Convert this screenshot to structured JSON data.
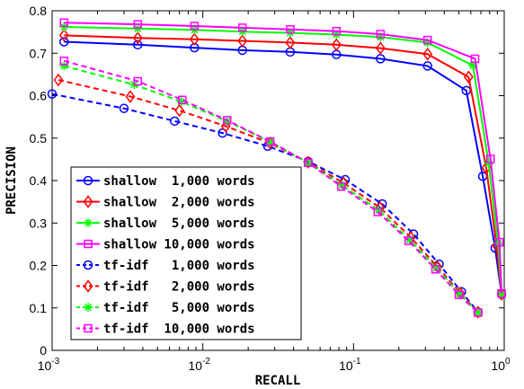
{
  "chart_data": {
    "type": "line",
    "xlabel": "RECALL",
    "ylabel": "PRECISION",
    "xscale": "log",
    "xlim": [
      0.001,
      1
    ],
    "ylim": [
      0,
      0.8
    ],
    "x_ticks": [
      {
        "value": 0.001,
        "base": "10",
        "exp": "-3"
      },
      {
        "value": 0.01,
        "base": "10",
        "exp": "-2"
      },
      {
        "value": 0.1,
        "base": "10",
        "exp": "-1"
      },
      {
        "value": 1,
        "base": "10",
        "exp": "0"
      }
    ],
    "y_ticks": [
      "0",
      "0.1",
      "0.2",
      "0.3",
      "0.4",
      "0.5",
      "0.6",
      "0.7",
      "0.8"
    ],
    "grid": false,
    "legend_position": "bottom-left",
    "series": [
      {
        "name": "shallow  1,000 words",
        "color": "#0000ff",
        "line": "solid",
        "marker": "circle",
        "x": [
          0.0012,
          0.0037,
          0.0088,
          0.0183,
          0.038,
          0.077,
          0.151,
          0.31,
          0.56,
          0.72,
          0.87,
          0.96
        ],
        "y": [
          0.727,
          0.72,
          0.713,
          0.707,
          0.703,
          0.697,
          0.687,
          0.67,
          0.612,
          0.41,
          0.241,
          0.132
        ]
      },
      {
        "name": "shallow  2,000 words",
        "color": "#ff0000",
        "line": "solid",
        "marker": "diamond",
        "x": [
          0.0012,
          0.0037,
          0.0088,
          0.0183,
          0.038,
          0.077,
          0.151,
          0.31,
          0.58,
          0.76,
          0.89,
          0.96
        ],
        "y": [
          0.742,
          0.736,
          0.733,
          0.729,
          0.725,
          0.72,
          0.712,
          0.698,
          0.644,
          0.43,
          0.247,
          0.132
        ]
      },
      {
        "name": "shallow  5,000 words",
        "color": "#00ff00",
        "line": "solid",
        "marker": "star",
        "x": [
          0.0012,
          0.0037,
          0.0088,
          0.0183,
          0.038,
          0.077,
          0.151,
          0.31,
          0.62,
          0.79,
          0.91,
          0.96
        ],
        "y": [
          0.762,
          0.758,
          0.755,
          0.751,
          0.748,
          0.744,
          0.738,
          0.725,
          0.671,
          0.44,
          0.252,
          0.132
        ]
      },
      {
        "name": "shallow 10,000 words",
        "color": "#ff00ff",
        "line": "solid",
        "marker": "square",
        "x": [
          0.0012,
          0.0037,
          0.0088,
          0.0183,
          0.038,
          0.077,
          0.151,
          0.31,
          0.64,
          0.81,
          0.93,
          0.96
        ],
        "y": [
          0.772,
          0.768,
          0.764,
          0.76,
          0.756,
          0.752,
          0.745,
          0.731,
          0.687,
          0.451,
          0.255,
          0.134
        ]
      },
      {
        "name": "tf-idf   1,000 words",
        "color": "#0000ff",
        "line": "dashed",
        "marker": "circle",
        "x": [
          0.001,
          0.003,
          0.0065,
          0.0135,
          0.027,
          0.05,
          0.088,
          0.155,
          0.25,
          0.37,
          0.52,
          0.67
        ],
        "y": [
          0.604,
          0.57,
          0.54,
          0.512,
          0.481,
          0.445,
          0.402,
          0.345,
          0.274,
          0.203,
          0.138,
          0.09
        ]
      },
      {
        "name": "tf-idf   2,000 words",
        "color": "#ff0000",
        "line": "dashed",
        "marker": "diamond",
        "x": [
          0.0011,
          0.0033,
          0.007,
          0.0142,
          0.028,
          0.05,
          0.086,
          0.15,
          0.24,
          0.36,
          0.51,
          0.67
        ],
        "y": [
          0.637,
          0.598,
          0.565,
          0.528,
          0.488,
          0.443,
          0.394,
          0.336,
          0.266,
          0.197,
          0.135,
          0.09
        ]
      },
      {
        "name": "tf-idf   5,000 words",
        "color": "#00ff00",
        "line": "dashed",
        "marker": "star",
        "x": [
          0.0012,
          0.0035,
          0.0072,
          0.0145,
          0.028,
          0.05,
          0.084,
          0.147,
          0.235,
          0.355,
          0.505,
          0.67
        ],
        "y": [
          0.67,
          0.626,
          0.586,
          0.54,
          0.491,
          0.442,
          0.389,
          0.33,
          0.261,
          0.194,
          0.133,
          0.09
        ]
      },
      {
        "name": "tf-idf  10,000 words",
        "color": "#ff00ff",
        "line": "dashed",
        "marker": "square",
        "x": [
          0.0012,
          0.0037,
          0.0073,
          0.0145,
          0.028,
          0.05,
          0.083,
          0.145,
          0.232,
          0.35,
          0.5,
          0.67
        ],
        "y": [
          0.682,
          0.634,
          0.59,
          0.542,
          0.492,
          0.442,
          0.386,
          0.326,
          0.258,
          0.191,
          0.131,
          0.089
        ]
      }
    ]
  }
}
